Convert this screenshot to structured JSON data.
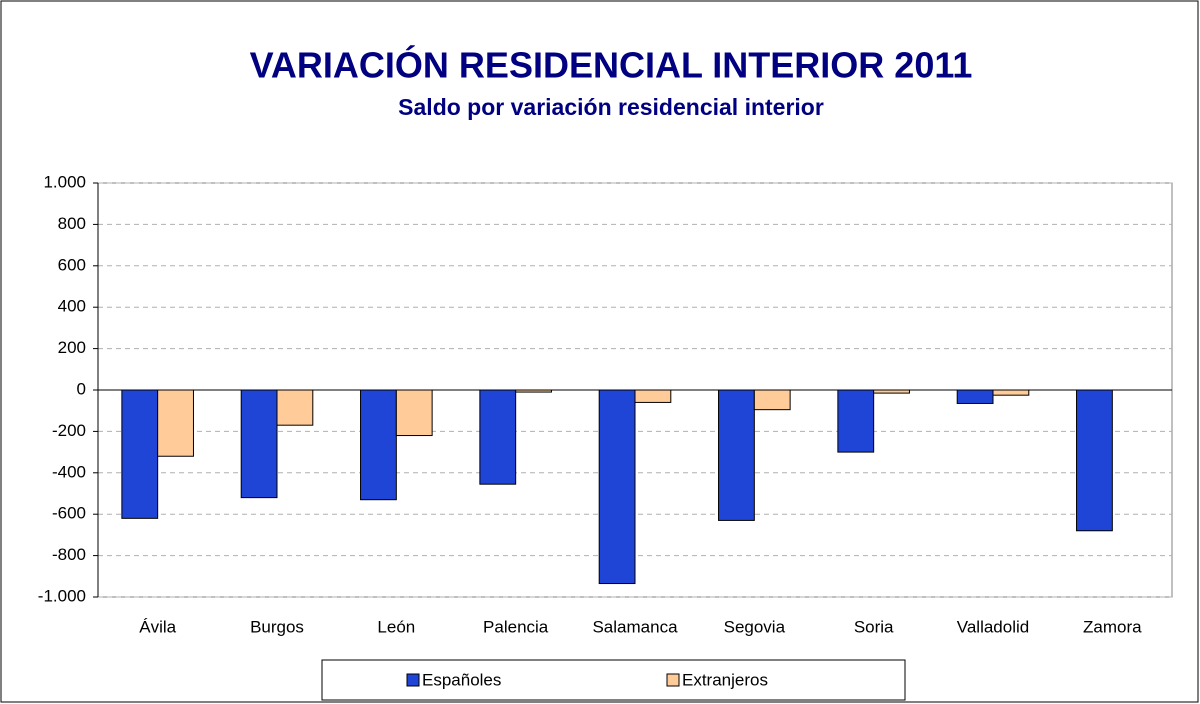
{
  "chart_data": {
    "type": "bar",
    "title": "VARIACIÓN RESIDENCIAL INTERIOR 2011",
    "subtitle": "Saldo por variación residencial interior",
    "categories": [
      "Ávila",
      "Burgos",
      "León",
      "Palencia",
      "Salamanca",
      "Segovia",
      "Soria",
      "Valladolid",
      "Zamora"
    ],
    "series": [
      {
        "name": "Españoles",
        "color": "#1f45d6",
        "values": [
          -620,
          -520,
          -530,
          -455,
          -935,
          -630,
          -300,
          -65,
          -680
        ]
      },
      {
        "name": "Extranjeros",
        "color": "#ffcc99",
        "values": [
          -320,
          -170,
          -220,
          -10,
          -60,
          -95,
          -15,
          -25,
          0
        ]
      }
    ],
    "ylim": [
      -1000,
      1000
    ],
    "yticks": [
      {
        "value": -1000,
        "label": "-1.000"
      },
      -800,
      -600,
      -400,
      -200,
      0,
      200,
      400,
      600,
      800,
      {
        "value": 1000,
        "label": "1.000"
      }
    ],
    "grid": true,
    "legend": "bottom"
  }
}
